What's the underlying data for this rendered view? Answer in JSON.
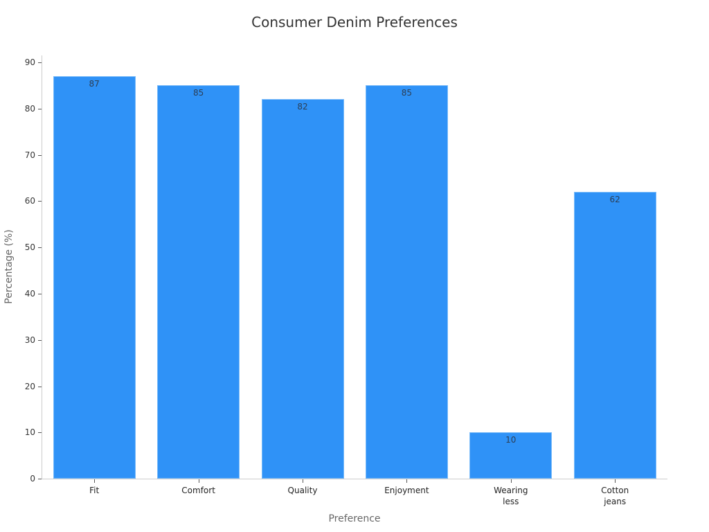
{
  "chart_data": {
    "type": "bar",
    "title": "Consumer Denim Preferences",
    "xlabel": "Preference",
    "ylabel": "Percentage (%)",
    "categories": [
      "Fit",
      "Comfort",
      "Quality",
      "Enjoyment",
      "Wearing less",
      "Cotton jeans"
    ],
    "category_lines": [
      [
        "Fit"
      ],
      [
        "Comfort"
      ],
      [
        "Quality"
      ],
      [
        "Enjoyment"
      ],
      [
        "Wearing",
        "less"
      ],
      [
        "Cotton",
        "jeans"
      ]
    ],
    "values": [
      87,
      85,
      82,
      85,
      10,
      62
    ],
    "data_labels": [
      "87",
      "85",
      "82",
      "85",
      "10",
      "62"
    ],
    "yticks": [
      "0",
      "10",
      "20",
      "30",
      "40",
      "50",
      "60",
      "70",
      "80",
      "90"
    ],
    "ylim": [
      0,
      90
    ],
    "grid": false,
    "legend": "none",
    "bar_color": "#2f92f7"
  }
}
